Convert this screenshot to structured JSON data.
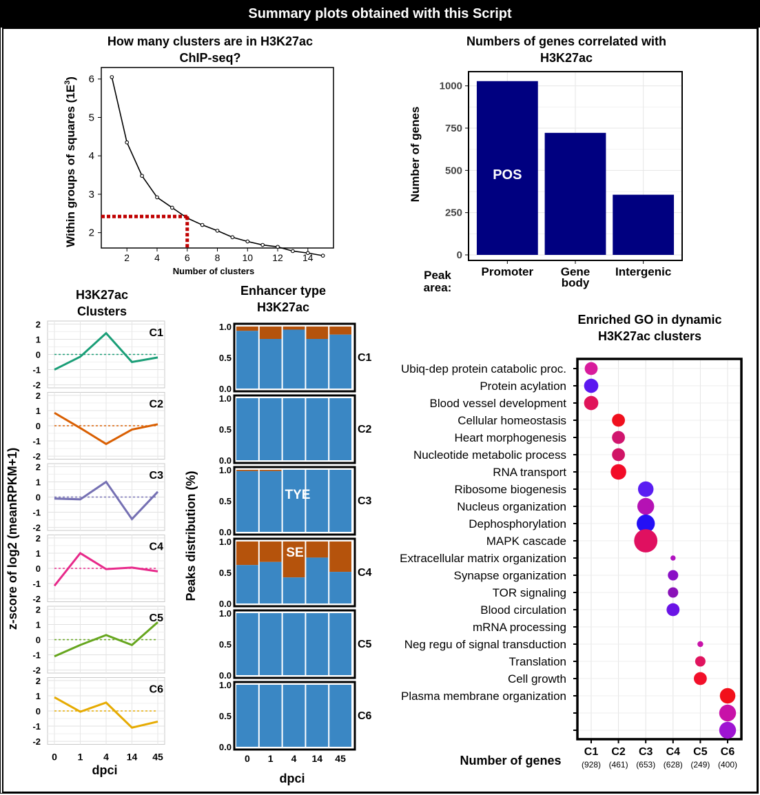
{
  "banner": "Summary plots obtained with this Script",
  "elbow": {
    "title_lines": [
      "How many clusters are in H3K27ac",
      "ChIP-seq?"
    ],
    "xlabel": "Number of clusters",
    "ylabel": "Within groups of squares (1E",
    "ylabel_sup": "3",
    "ylabel_end": ")",
    "x_ticks": [
      2,
      4,
      6,
      8,
      10,
      12,
      14
    ],
    "y_ticks": [
      2,
      3,
      4,
      5,
      6
    ],
    "x_range": [
      0.3,
      15.7
    ],
    "y_range": [
      1.6,
      6.3
    ],
    "points": [
      [
        1,
        6.05
      ],
      [
        2,
        4.35
      ],
      [
        3,
        3.48
      ],
      [
        4,
        2.92
      ],
      [
        5,
        2.65
      ],
      [
        6,
        2.38
      ],
      [
        7,
        2.2
      ],
      [
        8,
        2.05
      ],
      [
        9,
        1.88
      ],
      [
        10,
        1.77
      ],
      [
        11,
        1.68
      ],
      [
        12,
        1.63
      ],
      [
        13,
        1.52
      ],
      [
        14,
        1.47
      ],
      [
        15,
        1.4
      ]
    ],
    "highlight": {
      "x": 6,
      "y": 2.42
    },
    "line_color": "#000000",
    "highlight_color": "#c00000"
  },
  "genes": {
    "title_lines": [
      "Numbers of genes correlated with",
      "H3K27ac"
    ],
    "ylabel": "Number of genes",
    "peak_area_lines": [
      "Peak",
      "area:"
    ],
    "categories": [
      [
        "Promoter"
      ],
      [
        "Gene",
        "body"
      ],
      [
        "Intergenic"
      ]
    ],
    "values": [
      1028,
      722,
      356
    ],
    "y_ticks": [
      0,
      250,
      500,
      750,
      1000
    ],
    "y_range": [
      0,
      1080
    ],
    "bar_color": "#000080",
    "annotation": "POS"
  },
  "clusters": {
    "title_lines": [
      "H3K27ac",
      "Clusters"
    ],
    "ylabel": "z-score of log2 (meanRPKM+1)",
    "xlabel": "dpci",
    "x_ticks": [
      "0",
      "1",
      "4",
      "14",
      "45"
    ],
    "y_ticks": [
      -2,
      -1,
      0,
      1,
      2
    ],
    "y_range": [
      -2.2,
      2.2
    ],
    "panels": [
      {
        "name": "C1",
        "color": "#1a9e77",
        "values": [
          -1.0,
          -0.15,
          1.4,
          -0.5,
          -0.2
        ]
      },
      {
        "name": "C2",
        "color": "#d95f02",
        "values": [
          0.85,
          -0.15,
          -1.2,
          -0.25,
          0.1
        ]
      },
      {
        "name": "C3",
        "color": "#7570b3",
        "values": [
          -0.1,
          -0.15,
          1.0,
          -1.45,
          0.35
        ]
      },
      {
        "name": "C4",
        "color": "#e7298a",
        "values": [
          -1.15,
          1.0,
          -0.05,
          0.05,
          -0.2
        ]
      },
      {
        "name": "C5",
        "color": "#66a61e",
        "values": [
          -1.1,
          -0.35,
          0.3,
          -0.35,
          1.15
        ]
      },
      {
        "name": "C6",
        "color": "#e6ab02",
        "values": [
          0.9,
          -0.05,
          0.55,
          -1.1,
          -0.7
        ]
      }
    ]
  },
  "enhancer": {
    "title_lines": [
      "Enhancer type",
      "H3K27ac"
    ],
    "ylabel": "Peaks distribution (%)",
    "xlabel": "dpci",
    "x_ticks": [
      "0",
      "1",
      "4",
      "14",
      "45"
    ],
    "y_ticks": [
      "0.0",
      "0.5",
      "1.0"
    ],
    "tye_color": "#3a87c4",
    "se_color": "#b5530c",
    "tye_label": "TYE",
    "se_label": "SE",
    "panels": [
      {
        "name": "C1",
        "tye": [
          0.93,
          0.8,
          0.95,
          0.8,
          0.87
        ]
      },
      {
        "name": "C2",
        "tye": [
          1.0,
          1.0,
          1.0,
          1.0,
          1.0
        ]
      },
      {
        "name": "C3",
        "tye": [
          0.98,
          0.98,
          1.0,
          1.0,
          1.0
        ]
      },
      {
        "name": "C4",
        "tye": [
          0.62,
          0.67,
          0.42,
          0.74,
          0.51
        ]
      },
      {
        "name": "C5",
        "tye": [
          1.0,
          1.0,
          1.0,
          1.0,
          1.0
        ]
      },
      {
        "name": "C6",
        "tye": [
          1.0,
          1.0,
          1.0,
          1.0,
          1.0
        ]
      }
    ]
  },
  "go": {
    "title_lines": [
      "Enriched GO in dynamic",
      "H3K27ac clusters"
    ],
    "xlabel": "Number of genes",
    "terms": [
      "Ubiq-dep protein catabolic proc.",
      "Protein acylation",
      "Blood vessel development",
      "Cellular homeostasis",
      "Heart morphogenesis",
      "Nucleotide metabolic process",
      "RNA transport",
      "Ribosome biogenesis",
      "Nucleus organization",
      "Dephosphorylation",
      "MAPK cascade",
      "Extracellular matrix organization",
      "Synapse organization",
      "TOR signaling",
      "Blood circulation",
      "mRNA processing",
      "Neg regu of signal transduction",
      "Translation",
      "Cell growth",
      "Plasma membrane organization",
      "",
      ""
    ],
    "clusters": [
      "C1",
      "C2",
      "C3",
      "C4",
      "C5",
      "C6"
    ],
    "counts": [
      "(928)",
      "(461)",
      "(653)",
      "(628)",
      "(249)",
      "(400)"
    ],
    "dots": [
      {
        "row": 0,
        "col": 0,
        "size": 2,
        "color": "#d81b9c"
      },
      {
        "row": 1,
        "col": 0,
        "size": 2.2,
        "color": "#5b18f0"
      },
      {
        "row": 2,
        "col": 0,
        "size": 2.2,
        "color": "#e0145a"
      },
      {
        "row": 3,
        "col": 1,
        "size": 2,
        "color": "#f0101e"
      },
      {
        "row": 4,
        "col": 1,
        "size": 2,
        "color": "#d0156e"
      },
      {
        "row": 5,
        "col": 1,
        "size": 2,
        "color": "#d01566"
      },
      {
        "row": 6,
        "col": 1,
        "size": 2.4,
        "color": "#f20c28"
      },
      {
        "row": 7,
        "col": 2,
        "size": 2.4,
        "color": "#5a1ef2"
      },
      {
        "row": 8,
        "col": 2,
        "size": 2.6,
        "color": "#b512b4"
      },
      {
        "row": 9,
        "col": 2,
        "size": 2.8,
        "color": "#2410f5"
      },
      {
        "row": 10,
        "col": 2,
        "size": 3.6,
        "color": "#e01060"
      },
      {
        "row": 11,
        "col": 3,
        "size": 0.8,
        "color": "#b012c0"
      },
      {
        "row": 12,
        "col": 3,
        "size": 1.6,
        "color": "#8a10c6"
      },
      {
        "row": 13,
        "col": 3,
        "size": 1.6,
        "color": "#8a12b8"
      },
      {
        "row": 14,
        "col": 3,
        "size": 2,
        "color": "#6a14e6"
      },
      {
        "row": 16,
        "col": 4,
        "size": 0.9,
        "color": "#c812a8"
      },
      {
        "row": 17,
        "col": 4,
        "size": 1.6,
        "color": "#e0145e"
      },
      {
        "row": 18,
        "col": 4,
        "size": 2,
        "color": "#f2102a"
      },
      {
        "row": 19,
        "col": 5,
        "size": 2.4,
        "color": "#f2101a"
      },
      {
        "row": 20,
        "col": 5,
        "size": 2.6,
        "color": "#c812a8"
      },
      {
        "row": 21,
        "col": 5,
        "size": 2.6,
        "color": "#9e14d2"
      }
    ]
  },
  "chart_data": [
    {
      "type": "line",
      "title": "How many clusters are in H3K27ac ChIP-seq?",
      "xlabel": "Number of clusters",
      "ylabel": "Within groups of squares (1E3)",
      "x": [
        1,
        2,
        3,
        4,
        5,
        6,
        7,
        8,
        9,
        10,
        11,
        12,
        13,
        14,
        15
      ],
      "values": [
        6.05,
        4.35,
        3.48,
        2.92,
        2.65,
        2.38,
        2.2,
        2.05,
        1.88,
        1.77,
        1.68,
        1.63,
        1.52,
        1.47,
        1.4
      ]
    },
    {
      "type": "bar",
      "title": "Numbers of genes correlated with H3K27ac",
      "ylabel": "Number of genes",
      "categories": [
        "Promoter",
        "Gene body",
        "Intergenic"
      ],
      "values": [
        1028,
        722,
        356
      ]
    },
    {
      "type": "line",
      "title": "H3K27ac Clusters",
      "xlabel": "dpci",
      "ylabel": "z-score of log2 (meanRPKM+1)",
      "x": [
        "0",
        "1",
        "4",
        "14",
        "45"
      ],
      "series": [
        {
          "name": "C1",
          "values": [
            -1.0,
            -0.15,
            1.4,
            -0.5,
            -0.2
          ]
        },
        {
          "name": "C2",
          "values": [
            0.85,
            -0.15,
            -1.2,
            -0.25,
            0.1
          ]
        },
        {
          "name": "C3",
          "values": [
            -0.1,
            -0.15,
            1.0,
            -1.45,
            0.35
          ]
        },
        {
          "name": "C4",
          "values": [
            -1.15,
            1.0,
            -0.05,
            0.05,
            -0.2
          ]
        },
        {
          "name": "C5",
          "values": [
            -1.1,
            -0.35,
            0.3,
            -0.35,
            1.15
          ]
        },
        {
          "name": "C6",
          "values": [
            0.9,
            -0.05,
            0.55,
            -1.1,
            -0.7
          ]
        }
      ]
    },
    {
      "type": "bar",
      "title": "Enhancer type H3K27ac",
      "xlabel": "dpci",
      "ylabel": "Peaks distribution (%)",
      "x": [
        "0",
        "1",
        "4",
        "14",
        "45"
      ],
      "series": [
        {
          "name": "C1",
          "values": [
            0.93,
            0.8,
            0.95,
            0.8,
            0.87
          ]
        },
        {
          "name": "C2",
          "values": [
            1,
            1,
            1,
            1,
            1
          ]
        },
        {
          "name": "C3",
          "values": [
            0.98,
            0.98,
            1,
            1,
            1
          ]
        },
        {
          "name": "C4",
          "values": [
            0.62,
            0.67,
            0.42,
            0.74,
            0.51
          ]
        },
        {
          "name": "C5",
          "values": [
            1,
            1,
            1,
            1,
            1
          ]
        },
        {
          "name": "C6",
          "values": [
            1,
            1,
            1,
            1,
            1
          ]
        }
      ]
    },
    {
      "type": "scatter",
      "title": "Enriched GO in dynamic H3K27ac clusters",
      "xlabel": "Number of genes",
      "categories": [
        "C1",
        "C2",
        "C3",
        "C4",
        "C5",
        "C6"
      ],
      "gene_counts": [
        928,
        461,
        653,
        628,
        249,
        400
      ]
    }
  ]
}
